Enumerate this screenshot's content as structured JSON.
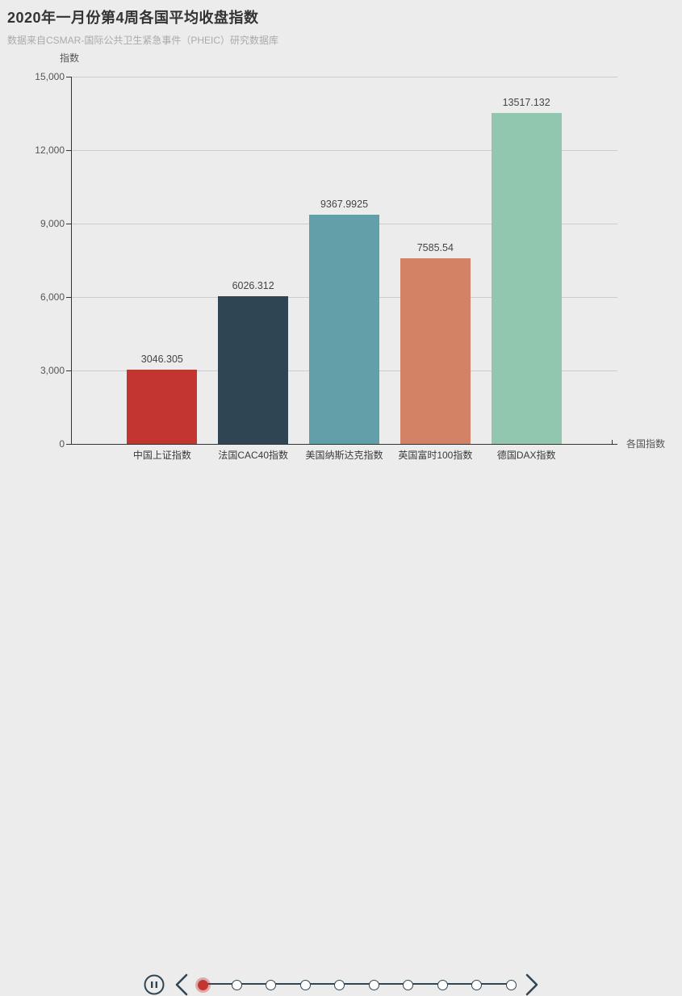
{
  "title": "2020年一月份第4周各国平均收盘指数",
  "subtitle": "数据来自CSMAR-国际公共卫生紧急事件（PHEIC）研究数据库",
  "chart_data": {
    "type": "bar",
    "title": "2020年一月份第4周各国平均收盘指数",
    "subtitle": "数据来自CSMAR-国际公共卫生紧急事件（PHEIC）研究数据库",
    "categories": [
      "中国上证指数",
      "法国CAC40指数",
      "美国纳斯达克指数",
      "英国富时100指数",
      "德国DAX指数"
    ],
    "values": [
      3046.305,
      6026.312,
      9367.9925,
      7585.54,
      13517.132
    ],
    "value_labels": [
      "3046.305",
      "6026.312",
      "9367.9925",
      "7585.54",
      "13517.132"
    ],
    "bar_colors": [
      "#c23531",
      "#2f4554",
      "#61a0a8",
      "#d48265",
      "#91c7ae"
    ],
    "ylabel": "指数",
    "xlabel": "各国指数",
    "ylim": [
      0,
      15000
    ],
    "y_ticks": [
      "0",
      "3,000",
      "6,000",
      "9,000",
      "12,000",
      "15,000"
    ],
    "grid": true,
    "legend": false
  },
  "timeline": {
    "steps": 10,
    "active_step": 0,
    "play_state_icon": "pause-icon",
    "accent_color": "#c23531",
    "control_color": "#304654"
  },
  "colors": {
    "background": "#ececec",
    "title_text": "#333333",
    "subtitle_text": "#aaaaaa",
    "axis_line": "#333333",
    "gridline": "#cccccc",
    "label_text": "#444444"
  }
}
